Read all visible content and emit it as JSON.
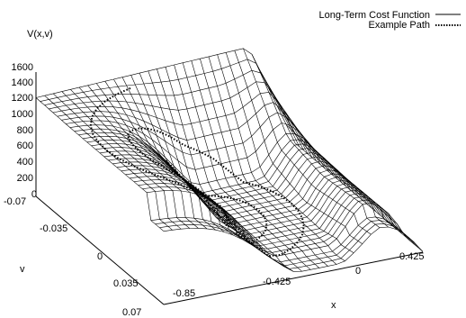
{
  "chart_data": {
    "type": "surface",
    "title": "",
    "zlabel": "V(x,v)",
    "xlabel": "x",
    "ylabel": "v",
    "z_ticks": [
      "0",
      "200",
      "400",
      "600",
      "800",
      "1000",
      "1200",
      "1400",
      "1600"
    ],
    "x_ticks": [
      "-0.85",
      "-0.425",
      "0",
      "0.425"
    ],
    "v_ticks": [
      "-0.07",
      "-0.035",
      "0",
      "0.035",
      "0.07"
    ],
    "x_range": [
      -1.2,
      0.5
    ],
    "v_range": [
      -0.07,
      0.07
    ],
    "z_range": [
      0,
      1600
    ],
    "legend_position": "top-right",
    "series": [
      {
        "name": "Long-Term Cost Function",
        "style": "solid",
        "color": "#000000"
      },
      {
        "name": "Example Path",
        "style": "dotted",
        "color": "#000000"
      }
    ]
  }
}
